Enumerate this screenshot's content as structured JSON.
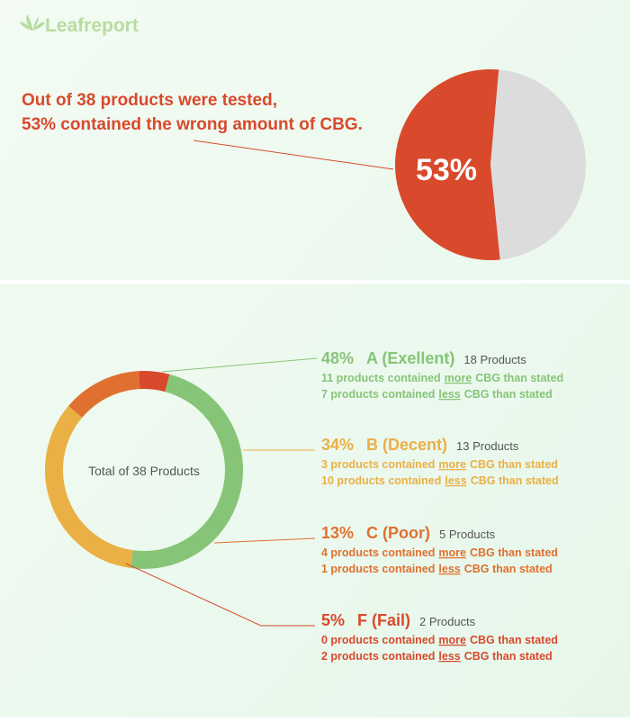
{
  "header": {
    "logo": "Leafreport"
  },
  "chart_data": [
    {
      "type": "pie",
      "title_lines": [
        "Out of 38 products were tested,",
        "53% contained the wrong amount of CBG."
      ],
      "values": [
        53,
        47
      ],
      "value_labels": [
        "53%",
        null
      ],
      "colors": [
        "#d9492b",
        "#dcdcdc"
      ]
    },
    {
      "type": "donut",
      "center_label": "Total of 38 Products",
      "categories": [
        "A (Exellent)",
        "B (Decent)",
        "C (Poor)",
        "F (Fail)"
      ],
      "values": [
        48,
        34,
        13,
        5
      ],
      "value_labels": [
        "48%",
        "34%",
        "13%",
        "5%"
      ],
      "colors": [
        "#86c577",
        "#eab045",
        "#e0702f",
        "#d9492b"
      ],
      "counts": [
        "18 Products",
        "13 Products",
        "5 Products",
        "2 Products"
      ],
      "details": [
        [
          {
            "before": "11 products contained",
            "word": "more",
            "after": "CBG than stated"
          },
          {
            "before": "7 products contained",
            "word": "less",
            "after": "CBG than stated"
          }
        ],
        [
          {
            "before": "3 products contained",
            "word": "more",
            "after": "CBG than stated"
          },
          {
            "before": "10 products contained",
            "word": "less",
            "after": "CBG than stated"
          }
        ],
        [
          {
            "before": "4 products contained",
            "word": "more",
            "after": "CBG than stated"
          },
          {
            "before": "1 products contained",
            "word": "less",
            "after": "CBG than stated"
          }
        ],
        [
          {
            "before": "0 products contained",
            "word": "more",
            "after": "CBG than stated"
          },
          {
            "before": "2 products contained",
            "word": "less",
            "after": "CBG than stated"
          }
        ]
      ]
    }
  ]
}
